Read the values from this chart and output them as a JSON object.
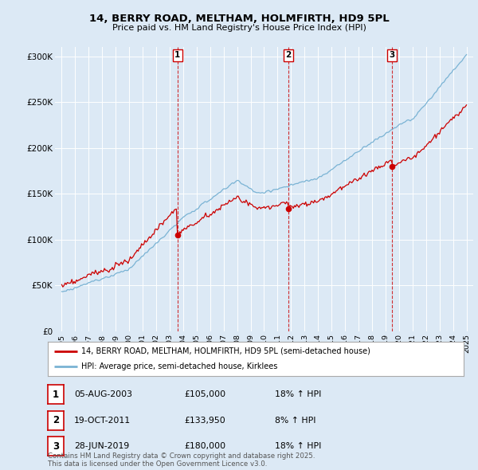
{
  "title": "14, BERRY ROAD, MELTHAM, HOLMFIRTH, HD9 5PL",
  "subtitle": "Price paid vs. HM Land Registry's House Price Index (HPI)",
  "legend_line1": "14, BERRY ROAD, MELTHAM, HOLMFIRTH, HD9 5PL (semi-detached house)",
  "legend_line2": "HPI: Average price, semi-detached house, Kirklees",
  "footer": "Contains HM Land Registry data © Crown copyright and database right 2025.\nThis data is licensed under the Open Government Licence v3.0.",
  "transactions": [
    {
      "num": 1,
      "date": "05-AUG-2003",
      "price": 105000,
      "hpi_pct": "18% ↑ HPI",
      "year": 2003.58
    },
    {
      "num": 2,
      "date": "19-OCT-2011",
      "price": 133950,
      "hpi_pct": "8% ↑ HPI",
      "year": 2011.79
    },
    {
      "num": 3,
      "date": "28-JUN-2019",
      "price": 180000,
      "hpi_pct": "18% ↑ HPI",
      "year": 2019.49
    }
  ],
  "hpi_color": "#7ab3d4",
  "price_color": "#cc0000",
  "vline_color": "#cc0000",
  "bg_color": "#dce9f5",
  "ylim": [
    0,
    310000
  ],
  "xlim_start": 1994.5,
  "xlim_end": 2025.5
}
